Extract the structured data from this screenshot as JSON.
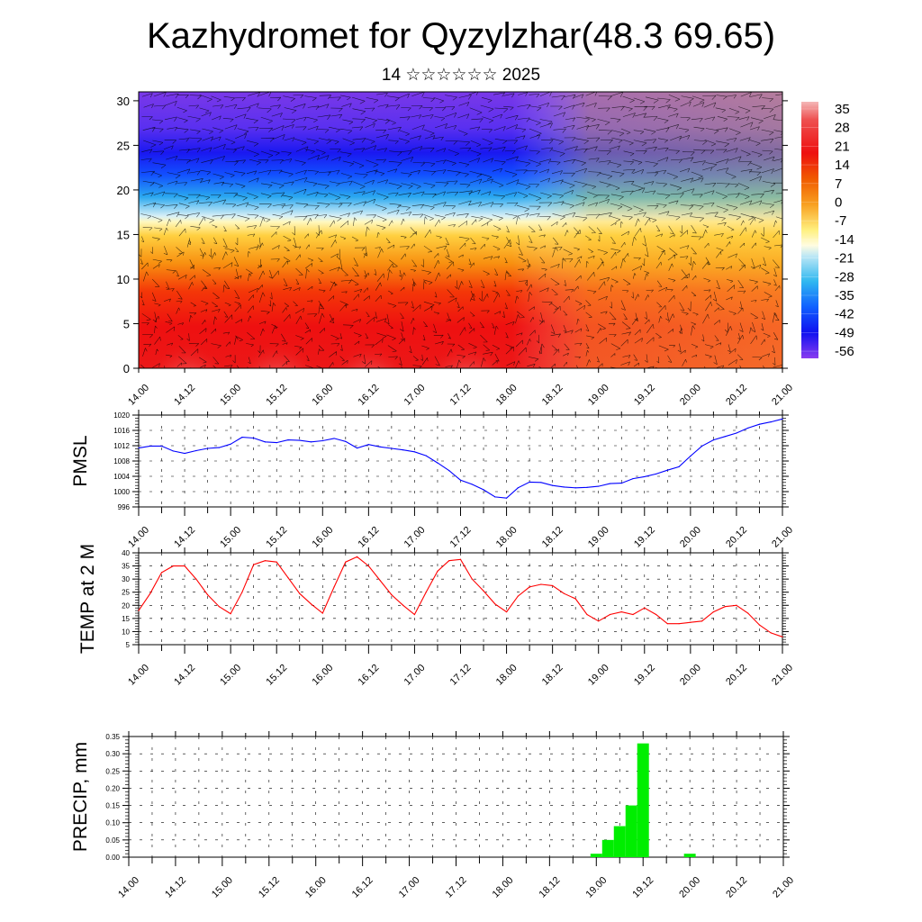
{
  "title": "Kazhydromet for Qyzylzhar(48.3 69.65)",
  "subtitle": "14 ☆☆☆☆☆☆ 2025",
  "time_ticks": [
    "14.00",
    "14.12",
    "15.00",
    "15.12",
    "16.00",
    "16.12",
    "17.00",
    "17.12",
    "18.00",
    "18.12",
    "19.00",
    "19.12",
    "20.00",
    "20.12",
    "21.00"
  ],
  "colors": {
    "pmsl_line": "#0000ff",
    "temp_line": "#ff0000",
    "precip_bar": "#00ee00"
  },
  "chart_data": [
    {
      "type": "heatmap",
      "name": "cross-section",
      "y_ticks": [
        0,
        5,
        10,
        15,
        20,
        25,
        30
      ],
      "ylim": [
        0,
        31
      ],
      "colorbar": {
        "labels": [
          "35",
          "28",
          "21",
          "14",
          "7",
          "0",
          "-7",
          "-14",
          "-21",
          "-28",
          "-35",
          "-42",
          "-49",
          "-56"
        ],
        "range": [
          -63,
          42
        ]
      },
      "overlay": "wind vectors"
    },
    {
      "type": "line",
      "name": "pmsl",
      "ylabel": "PMSL",
      "y_ticks": [
        996,
        1000,
        1004,
        1008,
        1012,
        1016,
        1020
      ],
      "ylim": [
        996,
        1020
      ],
      "x_hours": [
        0,
        3,
        6,
        9,
        12,
        15,
        18,
        21,
        24,
        27,
        30,
        33,
        36,
        39,
        42,
        45,
        48,
        51,
        54,
        57,
        60,
        63,
        66,
        69,
        72,
        75,
        78,
        81,
        84,
        87,
        90,
        93,
        96,
        99,
        102,
        105,
        108,
        111,
        114,
        117,
        120,
        123,
        126,
        129,
        132,
        135,
        138,
        141,
        144,
        147,
        150,
        153,
        156,
        159,
        162,
        165,
        168
      ],
      "values": [
        1011.4,
        1011.9,
        1011.9,
        1010.6,
        1010.0,
        1010.7,
        1011.3,
        1011.5,
        1012.4,
        1014.2,
        1014.0,
        1013.0,
        1012.8,
        1013.5,
        1013.4,
        1013.0,
        1013.3,
        1013.9,
        1013.1,
        1011.4,
        1012.3,
        1011.7,
        1011.3,
        1010.9,
        1010.4,
        1009.4,
        1007.5,
        1005.5,
        1003.0,
        1001.9,
        1000.5,
        998.6,
        998.3,
        1001.0,
        1002.5,
        1002.4,
        1001.6,
        1001.2,
        1001.0,
        1001.1,
        1001.4,
        1002.1,
        1002.2,
        1003.4,
        1003.9,
        1004.6,
        1005.6,
        1006.5,
        1009.3,
        1011.9,
        1013.5,
        1014.4,
        1015.3,
        1016.6,
        1017.6,
        1018.2,
        1019.0
      ]
    },
    {
      "type": "line",
      "name": "temp-2m",
      "ylabel": "TEMP at 2 M",
      "y_ticks": [
        5,
        10,
        15,
        20,
        25,
        30,
        35,
        40
      ],
      "ylim": [
        5,
        40
      ],
      "x_hours": [
        0,
        3,
        6,
        9,
        12,
        15,
        18,
        21,
        24,
        27,
        30,
        33,
        36,
        39,
        42,
        45,
        48,
        51,
        54,
        57,
        60,
        63,
        66,
        69,
        72,
        75,
        78,
        81,
        84,
        87,
        90,
        93,
        96,
        99,
        102,
        105,
        108,
        111,
        114,
        117,
        120,
        123,
        126,
        129,
        132,
        135,
        138,
        141,
        144,
        147,
        150,
        153,
        156,
        159,
        162,
        165,
        168
      ],
      "values": [
        18,
        24.5,
        32.5,
        35,
        35,
        30,
        24,
        19.5,
        16.8,
        25,
        35.5,
        37,
        36.5,
        30.5,
        24.5,
        20.5,
        17,
        27,
        36.5,
        38.5,
        35,
        29.5,
        24,
        20,
        16.5,
        25,
        33,
        37,
        37.5,
        30,
        25.5,
        20.5,
        17.5,
        23.5,
        27,
        28,
        27.5,
        24.5,
        22.5,
        16.5,
        14,
        16.5,
        17.5,
        16.5,
        19,
        16.5,
        13,
        13,
        13.5,
        14,
        17.5,
        19.5,
        20,
        17,
        12.5,
        9.5,
        8
      ]
    },
    {
      "type": "bar",
      "name": "precip",
      "ylabel": "PRECIP, mm",
      "y_ticks": [
        "0.00",
        "0.05",
        "0.10",
        "0.15",
        "0.20",
        "0.25",
        "0.30",
        "0.35"
      ],
      "ylim": [
        0,
        0.35
      ],
      "x_hours": [
        120,
        123,
        126,
        129,
        132,
        144
      ],
      "values": [
        0.01,
        0.05,
        0.09,
        0.15,
        0.33,
        0.01
      ]
    }
  ]
}
